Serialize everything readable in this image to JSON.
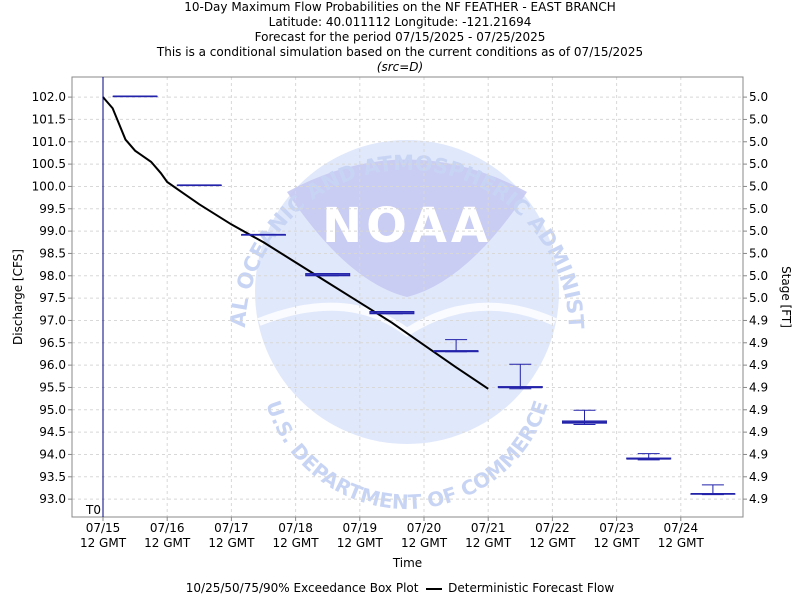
{
  "chart_data": {
    "type": "box",
    "title_lines": [
      "10-Day Maximum Flow Probabilities on the NF FEATHER - EAST BRANCH",
      "Latitude: 40.011112 Longitude: -121.21694",
      "Forecast for the period 07/15/2025 - 07/25/2025",
      "This is a conditional simulation based on the current conditions as of 07/15/2025"
    ],
    "source_label": "(src=D)",
    "xlabel": "Time",
    "ylabel": "Discharge [CFS]",
    "y2label": "Stage [FT]",
    "ylim": [
      92.6,
      102.45
    ],
    "xlim": [
      0,
      10.25
    ],
    "y_ticks": [
      93.0,
      93.5,
      94.0,
      94.5,
      95.0,
      95.5,
      96.0,
      96.5,
      97.0,
      97.5,
      98.0,
      98.5,
      99.0,
      99.5,
      100.0,
      100.5,
      101.0,
      101.5,
      102.0
    ],
    "y_tick_labels": [
      "93.0",
      "93.5",
      "94.0",
      "94.5",
      "95.0",
      "95.5",
      "96.0",
      "96.5",
      "97.0",
      "97.5",
      "98.0",
      "98.5",
      "99.0",
      "99.5",
      "100.0",
      "100.5",
      "101.0",
      "101.5",
      "102.0"
    ],
    "y2_tick_labels": [
      "4.9",
      "4.9",
      "4.9",
      "4.9",
      "4.9",
      "4.9",
      "4.9",
      "4.9",
      "4.9",
      "5.0",
      "5.0",
      "5.0",
      "5.0",
      "5.0",
      "5.0",
      "5.0",
      "5.0",
      "5.0",
      "5.0"
    ],
    "x_ticks": [
      {
        "x": 0,
        "date": "07/15",
        "time": "12 GMT"
      },
      {
        "x": 1,
        "date": "07/16",
        "time": "12 GMT"
      },
      {
        "x": 2,
        "date": "07/17",
        "time": "12 GMT"
      },
      {
        "x": 3,
        "date": "07/18",
        "time": "12 GMT"
      },
      {
        "x": 4,
        "date": "07/19",
        "time": "12 GMT"
      },
      {
        "x": 5,
        "date": "07/20",
        "time": "12 GMT"
      },
      {
        "x": 6,
        "date": "07/21",
        "time": "12 GMT"
      },
      {
        "x": 7,
        "date": "07/22",
        "time": "12 GMT"
      },
      {
        "x": 8,
        "date": "07/23",
        "time": "12 GMT"
      },
      {
        "x": 9,
        "date": "07/24",
        "time": "12 GMT"
      }
    ],
    "t0_label": "T0",
    "t0_x": 0,
    "boxes": [
      {
        "x": 0.5,
        "p10": 102.02,
        "p25": 102.02,
        "p50": 102.02,
        "p75": 102.02,
        "p90": 102.02
      },
      {
        "x": 1.5,
        "p10": 100.03,
        "p25": 100.03,
        "p50": 100.03,
        "p75": 100.03,
        "p90": 100.03
      },
      {
        "x": 2.5,
        "p10": 98.92,
        "p25": 98.92,
        "p50": 98.92,
        "p75": 98.92,
        "p90": 98.92
      },
      {
        "x": 3.5,
        "p10": 98.0,
        "p25": 98.0,
        "p50": 98.02,
        "p75": 98.05,
        "p90": 98.05
      },
      {
        "x": 4.5,
        "p10": 97.15,
        "p25": 97.15,
        "p50": 97.17,
        "p75": 97.2,
        "p90": 97.2
      },
      {
        "x": 5.5,
        "p10": 96.3,
        "p25": 96.3,
        "p50": 96.32,
        "p75": 96.32,
        "p90": 96.57
      },
      {
        "x": 6.5,
        "p10": 95.47,
        "p25": 95.5,
        "p50": 95.5,
        "p75": 95.52,
        "p90": 96.02
      },
      {
        "x": 7.5,
        "p10": 94.67,
        "p25": 94.7,
        "p50": 94.72,
        "p75": 94.75,
        "p90": 94.99
      },
      {
        "x": 8.5,
        "p10": 93.88,
        "p25": 93.9,
        "p50": 93.9,
        "p75": 93.92,
        "p90": 94.02
      },
      {
        "x": 9.5,
        "p10": 93.1,
        "p25": 93.12,
        "p50": 93.12,
        "p75": 93.12,
        "p90": 93.32
      }
    ],
    "deterministic": {
      "x": [
        0,
        0.15,
        0.25,
        0.35,
        0.5,
        0.6,
        0.75,
        0.9,
        1.0,
        1.25,
        1.5,
        2.0,
        2.5,
        3.0,
        3.5,
        4.0,
        4.5,
        5.0,
        5.5,
        6.0
      ],
      "y": [
        102.0,
        101.75,
        101.4,
        101.05,
        100.8,
        100.7,
        100.55,
        100.3,
        100.1,
        99.85,
        99.6,
        99.15,
        98.75,
        98.3,
        97.85,
        97.4,
        96.95,
        96.45,
        95.95,
        95.47
      ]
    },
    "grid": true,
    "colors": {
      "box": "#2222aa",
      "det": "#000000",
      "grid": "#d8d8d8",
      "t0": "#000080",
      "watermark": "#c8d4f4"
    },
    "watermark": {
      "center_word": "NOAA",
      "arc_top": "NATIONAL OCEANIC AND ATMOSPHERIC ADMINISTRATION",
      "arc_bottom": "U.S. DEPARTMENT OF COMMERCE"
    },
    "legend": {
      "position": "bottom",
      "box_label": "10/25/50/75/90% Exceedance Box Plot",
      "line_label": "Deterministic Forecast Flow"
    }
  }
}
